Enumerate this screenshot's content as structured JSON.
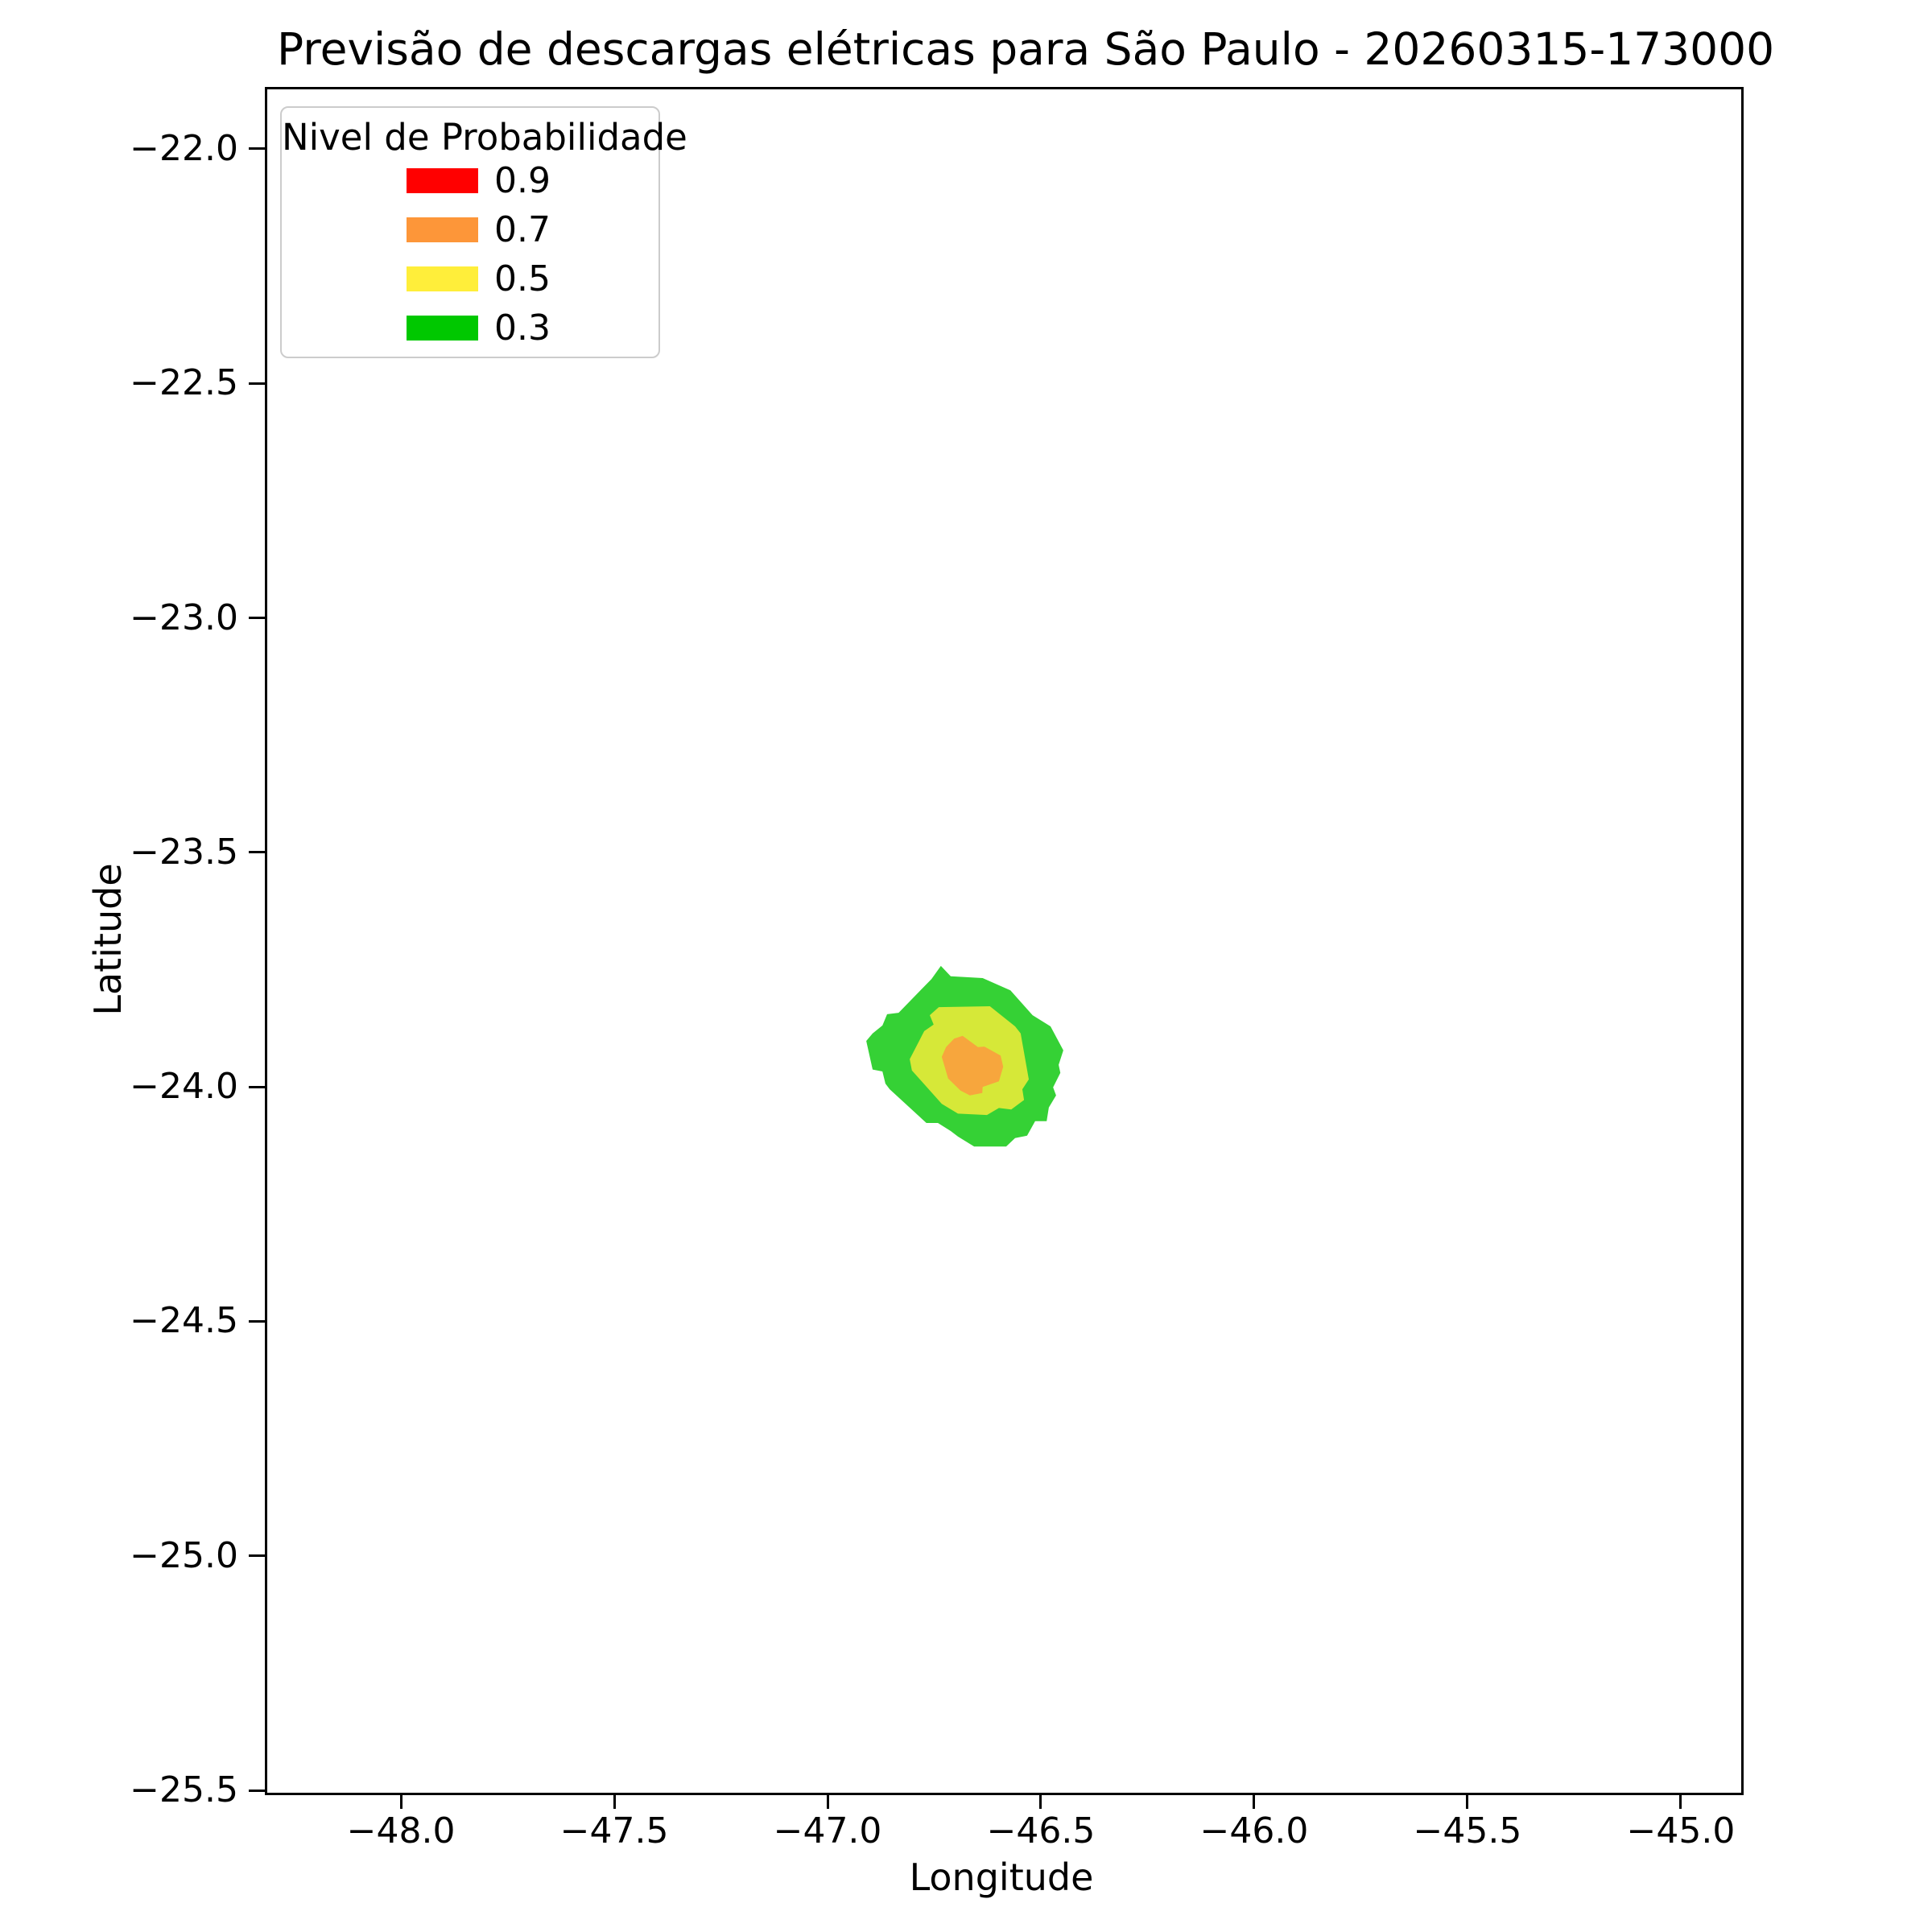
{
  "chart_data": {
    "type": "heatmap",
    "subtype": "filled-contour-map",
    "title": "Previsão de descargas elétricas para São Paulo - 20260315-173000",
    "xlabel": "Longitude",
    "ylabel": "Latitude",
    "xlim": [
      -48.319,
      -44.864
    ],
    "ylim": [
      -25.5,
      -21.868
    ],
    "grid": false,
    "background": "#ffffff",
    "x_ticks": {
      "values": [
        -48.0,
        -47.5,
        -47.0,
        -46.5,
        -46.0,
        -45.5,
        -45.0
      ],
      "labels": [
        "−48.0",
        "−47.5",
        "−47.0",
        "−46.5",
        "−46.0",
        "−45.5",
        "−45.0"
      ]
    },
    "y_ticks": {
      "values": [
        -22.0,
        -22.5,
        -23.0,
        -23.5,
        -24.0,
        -24.5,
        -25.0,
        -25.5
      ],
      "labels": [
        "−22.0",
        "−22.5",
        "−23.0",
        "−23.5",
        "−24.0",
        "−24.5",
        "−25.0",
        "−25.5"
      ]
    },
    "legend": {
      "title": "Nivel de Probabilidade",
      "position": "upper left",
      "entries": [
        {
          "label": "0.9",
          "color": "#ff0000"
        },
        {
          "label": "0.7",
          "color": "#fd9639"
        },
        {
          "label": "0.5",
          "color": "#ffee3a"
        },
        {
          "label": "0.3",
          "color": "#00c800"
        }
      ]
    },
    "contours": [
      {
        "level": 0.3,
        "fill": "#35d135",
        "points": [
          [
            -46.74,
            -23.737
          ],
          [
            -46.717,
            -23.759
          ],
          [
            -46.642,
            -23.763
          ],
          [
            -46.6,
            -23.78
          ],
          [
            -46.577,
            -23.789
          ],
          [
            -46.525,
            -23.842
          ],
          [
            -46.483,
            -23.866
          ],
          [
            -46.453,
            -23.917
          ],
          [
            -46.464,
            -23.948
          ],
          [
            -46.46,
            -23.965
          ],
          [
            -46.477,
            -23.996
          ],
          [
            -46.47,
            -24.013
          ],
          [
            -46.487,
            -24.039
          ],
          [
            -46.492,
            -24.068
          ],
          [
            -46.519,
            -24.068
          ],
          [
            -46.538,
            -24.099
          ],
          [
            -46.566,
            -24.104
          ],
          [
            -46.587,
            -24.122
          ],
          [
            -46.662,
            -24.122
          ],
          [
            -46.7,
            -24.101
          ],
          [
            -46.717,
            -24.089
          ],
          [
            -46.747,
            -24.072
          ],
          [
            -46.774,
            -24.072
          ],
          [
            -46.86,
            -24.0
          ],
          [
            -46.87,
            -23.988
          ],
          [
            -46.877,
            -23.962
          ],
          [
            -46.9,
            -23.958
          ],
          [
            -46.915,
            -23.897
          ],
          [
            -46.9,
            -23.881
          ],
          [
            -46.877,
            -23.864
          ],
          [
            -46.866,
            -23.84
          ],
          [
            -46.839,
            -23.837
          ],
          [
            -46.762,
            -23.765
          ]
        ]
      },
      {
        "level": 0.5,
        "fill": "#d6e838",
        "points": [
          [
            -46.745,
            -23.825
          ],
          [
            -46.625,
            -23.823
          ],
          [
            -46.566,
            -23.866
          ],
          [
            -46.553,
            -23.881
          ],
          [
            -46.534,
            -23.979
          ],
          [
            -46.549,
            -24.0
          ],
          [
            -46.545,
            -24.023
          ],
          [
            -46.575,
            -24.043
          ],
          [
            -46.604,
            -24.04
          ],
          [
            -46.632,
            -24.055
          ],
          [
            -46.7,
            -24.052
          ],
          [
            -46.738,
            -24.031
          ],
          [
            -46.808,
            -23.96
          ],
          [
            -46.813,
            -23.936
          ],
          [
            -46.779,
            -23.876
          ],
          [
            -46.757,
            -23.862
          ],
          [
            -46.766,
            -23.842
          ]
        ]
      },
      {
        "level": 0.7,
        "fill": "#f7a63d",
        "points": [
          [
            -46.709,
            -23.892
          ],
          [
            -46.689,
            -23.886
          ],
          [
            -46.653,
            -23.91
          ],
          [
            -46.638,
            -23.909
          ],
          [
            -46.6,
            -23.928
          ],
          [
            -46.594,
            -23.952
          ],
          [
            -46.604,
            -23.983
          ],
          [
            -46.642,
            -23.995
          ],
          [
            -46.643,
            -24.008
          ],
          [
            -46.672,
            -24.013
          ],
          [
            -46.694,
            -24.003
          ],
          [
            -46.723,
            -23.977
          ],
          [
            -46.738,
            -23.931
          ],
          [
            -46.728,
            -23.91
          ]
        ]
      }
    ]
  }
}
